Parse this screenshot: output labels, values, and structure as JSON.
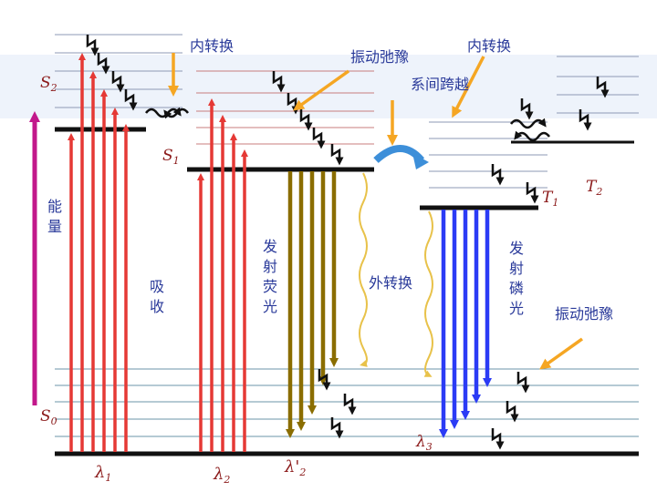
{
  "labels": {
    "internal_conversion_1": "内转换",
    "vibrational_relaxation_1": "振动弛豫",
    "internal_conversion_2": "内转换",
    "intersystem_crossing": "系间跨越",
    "s2": "S",
    "s2_sub": "2",
    "s1": "S",
    "s1_sub": "1",
    "s0": "S",
    "s0_sub": "0",
    "t1": "T",
    "t1_sub": "1",
    "t2": "T",
    "t2_sub": "2",
    "energy_1": "能",
    "energy_2": "量",
    "absorption_1": "吸",
    "absorption_2": "收",
    "fluorescence_1": "发",
    "fluorescence_2": "射",
    "fluorescence_3": "荧",
    "fluorescence_4": "光",
    "external_conversion": "外转换",
    "phosphorescence_1": "发",
    "phosphorescence_2": "射",
    "phosphorescence_3": "磷",
    "phosphorescence_4": "光",
    "vibrational_relaxation_2": "振动弛豫",
    "lambda1": "λ",
    "lambda1_sub": "1",
    "lambda2": "λ",
    "lambda2_sub": "2",
    "lambda2p": "λ'",
    "lambda2p_sub": "2",
    "lambda3": "λ",
    "lambda3_sub": "3"
  },
  "colors": {
    "absorption": "#e53935",
    "fluorescence": "#8a6d00",
    "phosphorescence": "#2b3bf5",
    "annotation_arrow": "#f5a623",
    "level_line": "#111111",
    "sublevel_line": "#9aa3b8",
    "energy_axis": "#c2188b",
    "isc_arrow": "#3d8fd9",
    "wavy_external": "#e8c24a",
    "label_text": "#2a3a9a"
  }
}
